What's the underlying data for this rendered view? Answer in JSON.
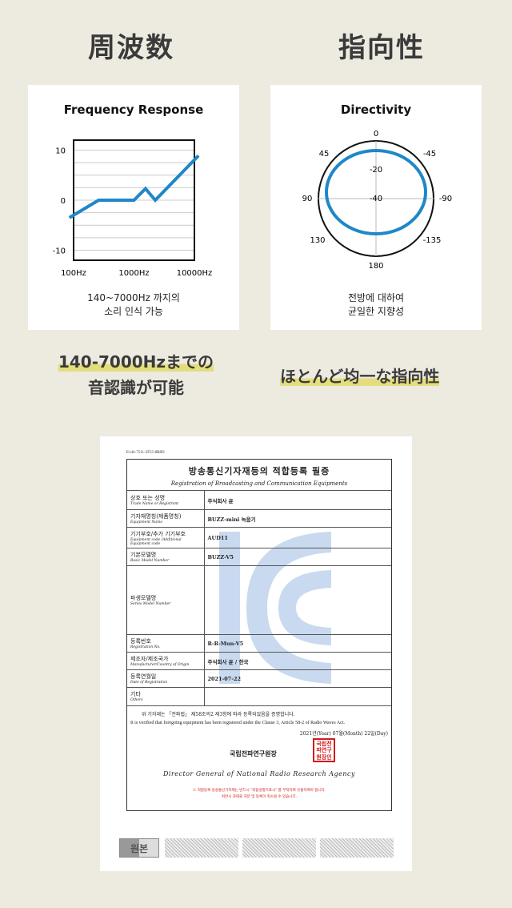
{
  "headings": {
    "left": "周波数",
    "right": "指向性"
  },
  "frequency_card": {
    "title": "Frequency Response",
    "caption_line1": "140~7000Hz 까지의",
    "caption_line2": "소리 인식 가능"
  },
  "directivity_card": {
    "title": "Directivity",
    "caption_line1": "전방에 대하여",
    "caption_line2": "균일한 지향성",
    "angle_labels": [
      "0",
      "45",
      "-45",
      "90",
      "-90",
      "130",
      "-135",
      "180"
    ],
    "ring_labels": [
      "-20",
      "-40"
    ]
  },
  "subtitles": {
    "left_line1": "140-7000Hzまでの",
    "left_line2": "音認識が可能",
    "right": "ほとんど均一な指向性"
  },
  "chart_data": [
    {
      "type": "line",
      "title": "Frequency Response",
      "xscale": "log",
      "x_ticks": [
        "100Hz",
        "1000Hz",
        "10000Hz"
      ],
      "y_ticks": [
        "10",
        "0",
        "-10"
      ],
      "ylim": [
        -12,
        12
      ],
      "grid": true,
      "line_color": "#1f87c9",
      "series": [
        {
          "x": [
            85,
            260,
            1000,
            1550,
            2250,
            11700
          ],
          "y": [
            -3.5,
            0,
            0,
            2.3,
            0,
            8.9
          ]
        }
      ]
    },
    {
      "type": "polar",
      "title": "Directivity",
      "pattern": "near-uniform ellipse",
      "line_color": "#1f87c9"
    }
  ],
  "certificate": {
    "doc_id": "E144-7511-2F55-8B8D",
    "title_ko": "방송통신기자재등의 적합등록 필증",
    "title_en": "Registration of Broadcasting and Communication Equipments",
    "rows": [
      {
        "label_ko": "상호 또는 성명",
        "label_en": "Trade Name or Registrant",
        "value": "주식회사 윤"
      },
      {
        "label_ko": "기자재명칭(제품명칭)",
        "label_en": "Equipment Name",
        "value": "BUZZ-mini 녹음기"
      },
      {
        "label_ko": "기기부호/추가 기기부호",
        "label_en": "Equipment code /Additional Equipment code",
        "value": "AUD11"
      },
      {
        "label_ko": "기본모델명",
        "label_en": "Basic Model Number",
        "value": "BUZZ-V5"
      },
      {
        "label_ko": "파생모델명",
        "label_en": "Series Model Number",
        "value": ""
      },
      {
        "label_ko": "등록번호",
        "label_en": "Registration No.",
        "value": "R-R-Mun-V5"
      },
      {
        "label_ko": "제조자/제조국가",
        "label_en": "Manufacturer/Country of Origin",
        "value": "주식회사 윤 / 한국"
      },
      {
        "label_ko": "등록연월일",
        "label_en": "Date of Registration",
        "value": "2021-07-22"
      },
      {
        "label_ko": "기타",
        "label_en": "Others",
        "value": ""
      }
    ],
    "statement_ko": "위 기자재는 「전파법」 제58조의2 제3항에 따라 등록되었음을 증명합니다.",
    "statement_en": "It is verified that foregoing equipment has been registered under the Clause 3, Article 58-2 of Radio Waves Act.",
    "date": "2021년(Year) 07월(Month) 22일(Day)",
    "issuer_ko": "국립전파연구원장",
    "issuer_en": "Director General of National Radio Research Agency",
    "seal_text": "국립전파연구원장인",
    "notice_line1": "※ 적합등록 방송통신기자재는 반드시 \"적합성평가표시\" 를 부착하여 유통하여야 합니다.",
    "notice_line2": "위반시 과태료 처분 및 등록이 취소될 수 있습니다.",
    "stamp_label": "원본"
  },
  "colors": {
    "background": "#edeae0",
    "accent_blue": "#1f87c9",
    "highlight": "#e3dd7e",
    "seal_red": "#d01c1c",
    "kc_mark": "#c9daf0"
  }
}
